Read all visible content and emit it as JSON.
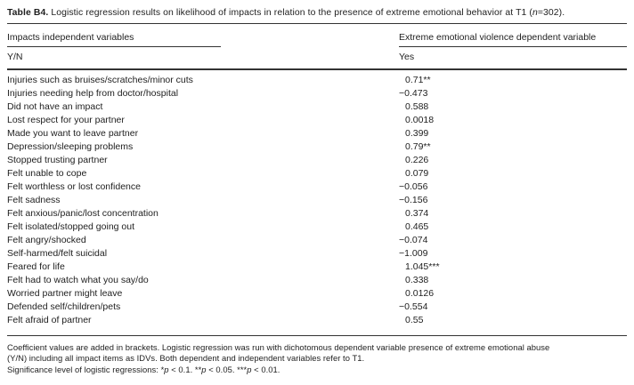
{
  "page": {
    "background": "#ffffff",
    "text_color": "#1e1e1e",
    "rule_color": "#333333"
  },
  "title": {
    "label": "Table B4.",
    "segments": [
      {
        "text": " Logistic regression results on likelihood of impacts in relation to the presence of extreme emotional behavior at T1 ("
      },
      {
        "text": "n",
        "italic": true
      },
      {
        "text": "=302)."
      }
    ]
  },
  "header": {
    "col1": "Impacts independent variables",
    "col1_sub": "Y/N",
    "col2": "Extreme emotional violence dependent variable",
    "col2_sub": "Yes"
  },
  "rows": [
    {
      "label": "Injuries such as bruises/scratches/minor cuts",
      "value": "0.71**"
    },
    {
      "label": "Injuries needing help from doctor/hospital",
      "value": "−0.473"
    },
    {
      "label": "Did not have an impact",
      "value": "0.588"
    },
    {
      "label": "Lost respect for your partner",
      "value": "0.0018"
    },
    {
      "label": "Made you want to leave partner",
      "value": "0.399"
    },
    {
      "label": "Depression/sleeping problems",
      "value": "0.79**"
    },
    {
      "label": "Stopped trusting partner",
      "value": "0.226"
    },
    {
      "label": "Felt unable to cope",
      "value": "0.079"
    },
    {
      "label": "Felt worthless or lost confidence",
      "value": "−0.056"
    },
    {
      "label": "Felt sadness",
      "value": "−0.156"
    },
    {
      "label": "Felt anxious/panic/lost concentration",
      "value": "0.374"
    },
    {
      "label": "Felt isolated/stopped going out",
      "value": "0.465"
    },
    {
      "label": "Felt angry/shocked",
      "value": "−0.074"
    },
    {
      "label": "Self-harmed/felt suicidal",
      "value": "−1.009"
    },
    {
      "label": "Feared for life",
      "value": "1.045***"
    },
    {
      "label": "Felt had to watch what you say/do",
      "value": "0.338"
    },
    {
      "label": "Worried partner might leave",
      "value": "0.0126"
    },
    {
      "label": "Defended self/children/pets",
      "value": "−0.554"
    },
    {
      "label": "Felt afraid of partner",
      "value": "0.55"
    }
  ],
  "footnotes": {
    "line1": "Coefficient values are added in brackets. Logistic regression was run with dichotomous dependent variable presence of extreme emotional abuse",
    "line2": "(Y/N) including all impact items as IDVs. Both dependent and independent variables refer to T1.",
    "significance_segments": [
      {
        "text": "Significance level of logistic regressions: *"
      },
      {
        "text": "p",
        "italic": true
      },
      {
        "text": " < 0.1. **"
      },
      {
        "text": "p",
        "italic": true
      },
      {
        "text": " < 0.05. ***"
      },
      {
        "text": "p",
        "italic": true
      },
      {
        "text": " < 0.01."
      }
    ]
  }
}
